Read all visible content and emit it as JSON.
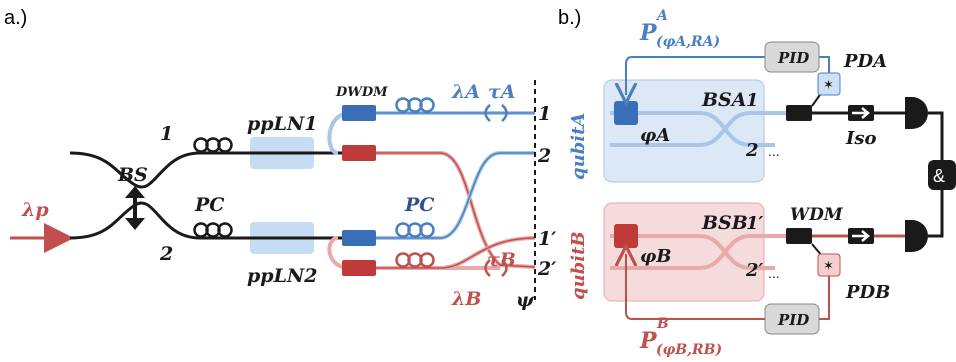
{
  "colors": {
    "blue": "#4a7fc1",
    "blue_light": "#a9c6e8",
    "red": "#c0504d",
    "red_light": "#e8a9a8",
    "black": "#1a1a1a",
    "box_blue": "#dce8f5",
    "box_red": "#f5dcdc",
    "pid_gray": "#d9d9d9",
    "ppln": "#b8d3f0"
  },
  "panel_a": {
    "label": "a.)",
    "lambda_p": "λp",
    "bs": "BS",
    "pc_top": "PC",
    "pc_mid": "PC",
    "port1": "1",
    "port2": "2",
    "ppln1": "ppLN1",
    "ppln2": "ppLN2",
    "dwdm": "DWDM",
    "lambda_a": "λA",
    "lambda_b": "λB",
    "tau_a": "τA",
    "tau_b": "τB",
    "out1": "1",
    "out2": "2",
    "out1p": "1′",
    "out2p": "2′",
    "psi": "ψ",
    "qubit_a": "qubitA",
    "qubit_b": "qubitB"
  },
  "panel_b": {
    "label": "b.)",
    "p_a_main": "P",
    "p_a_sup": "A",
    "p_a_sub": "(φA,RA)",
    "p_b_main": "P",
    "p_b_sup": "B",
    "p_b_sub": "(φB,RB)",
    "pid_top": "PID",
    "pid_bottom": "PID",
    "pd_a": "PDA",
    "pd_b": "PDB",
    "bs_a": "BSA",
    "bs_b": "BSB",
    "phi_a": "φA",
    "phi_b": "φB",
    "a_port1": "1",
    "a_port2": "2",
    "b_port1": "1′",
    "b_port2": "2′",
    "dots_a": "...",
    "dots_b": "...",
    "iso": "Iso",
    "wdm": "WDM",
    "and": "&"
  }
}
